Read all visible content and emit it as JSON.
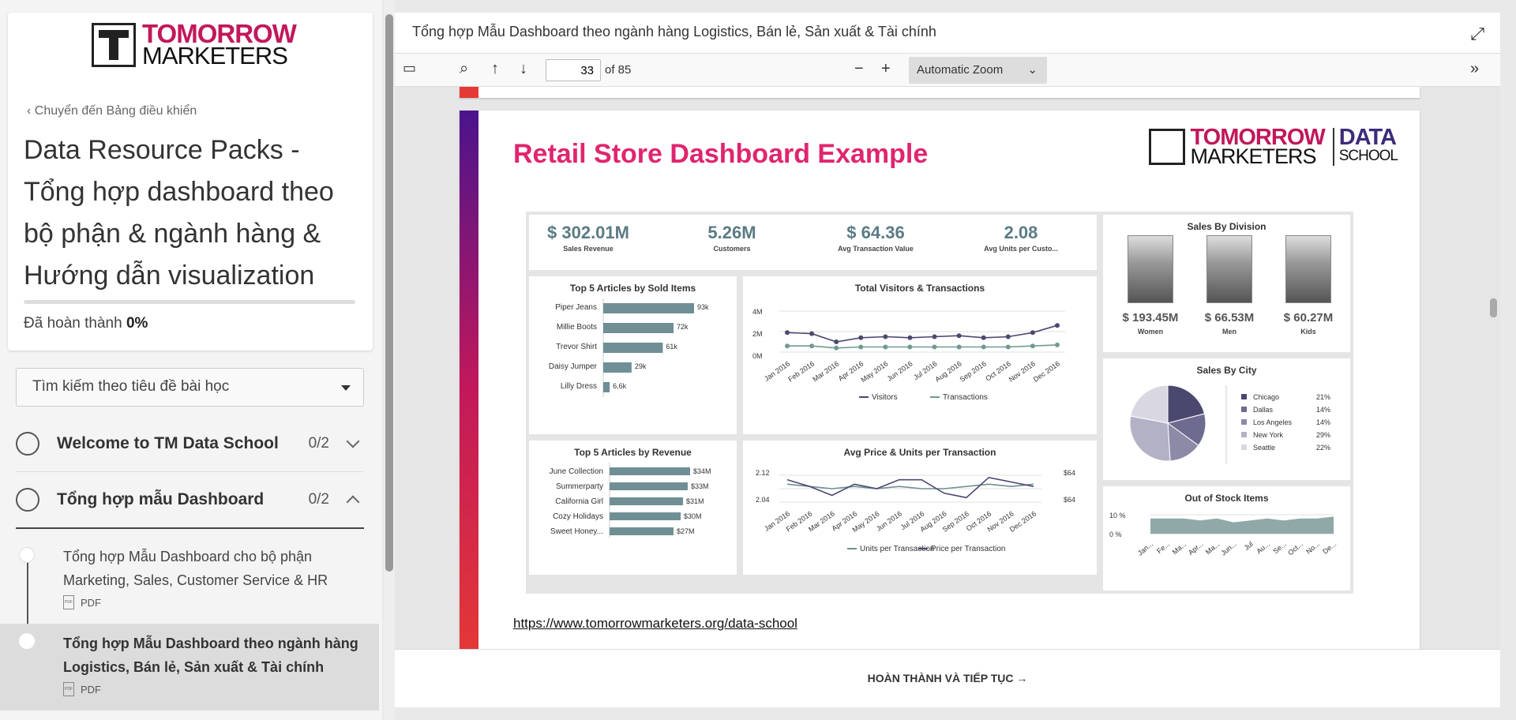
{
  "sidebar": {
    "logo": {
      "line1": "TOMORROW",
      "line2": "MARKETERS"
    },
    "back_link": "Chuyển đến Bảng điều khiển",
    "course_title": "Data Resource Packs - Tổng hợp dashboard theo bộ phận & ngành hàng & Hướng dẫn visualization",
    "progress_label": "Đã hoàn thành",
    "progress_value": "0%",
    "progress": 0,
    "search_placeholder": "Tìm kiếm theo tiêu đề bài học",
    "sections": [
      {
        "title": "Welcome to TM Data School",
        "count": "0/2",
        "expanded": false
      },
      {
        "title": "Tổng hợp mẫu Dashboard",
        "count": "0/2",
        "expanded": true
      }
    ],
    "lessons": [
      {
        "title": "Tổng hợp Mẫu Dashboard cho bộ phận Marketing, Sales, Customer Service & HR",
        "type": "PDF",
        "active": false
      },
      {
        "title": "Tổng hợp Mẫu Dashboard theo ngành hàng Logistics, Bán lẻ, Sản xuất & Tài chính",
        "type": "PDF",
        "active": true
      }
    ]
  },
  "viewer": {
    "title": "Tổng hợp Mẫu Dashboard theo ngành hàng Logistics, Bán lẻ, Sản xuất & Tài chính",
    "page": "33",
    "page_of": "of 85",
    "zoom": "Automatic Zoom",
    "footer_button": "HOÀN THÀNH VÀ TIẾP TỤC"
  },
  "slide": {
    "title": "Retail Store Dashboard Example",
    "logo": {
      "line1": "TOMORROW",
      "line2": "MARKETERS",
      "tag1": "DATA",
      "tag2": "SCHOOL"
    },
    "link": "https://www.tomorrowmarketers.org/data-school",
    "kpis": [
      {
        "value": "$ 302.01M",
        "label": "Sales Revenue"
      },
      {
        "value": "5.26M",
        "label": "Customers"
      },
      {
        "value": "$ 64.36",
        "label": "Avg Transaction Value"
      },
      {
        "value": "2.08",
        "label": "Avg Units per Custo..."
      }
    ],
    "division": {
      "title": "Sales By Division",
      "items": [
        {
          "value": "$ 193.45M",
          "label": "Women"
        },
        {
          "value": "$ 66.53M",
          "label": "Men"
        },
        {
          "value": "$ 60.27M",
          "label": "Kids"
        }
      ]
    }
  },
  "chart_data": [
    {
      "type": "bar",
      "title": "Top 5 Articles by Sold Items",
      "categories": [
        "Piper Jeans",
        "Millie Boots",
        "Trevor Shirt",
        "Daisy Jumper",
        "Lilly Dress"
      ],
      "values": [
        93,
        72,
        61,
        29,
        6.6
      ],
      "labels": [
        "93k",
        "72k",
        "61k",
        "29k",
        "6,6k"
      ]
    },
    {
      "type": "line",
      "title": "Total Visitors & Transactions",
      "x": [
        "Jan 2016",
        "Feb 2016",
        "Mar 2016",
        "Apr 2016",
        "May 2016",
        "Jun 2016",
        "Jul 2016",
        "Aug 2016",
        "Sep 2016",
        "Oct 2016",
        "Nov 2016",
        "Dec 2016"
      ],
      "yticks": [
        "4M",
        "2M",
        "0M"
      ],
      "ylim": [
        0,
        4
      ],
      "series": [
        {
          "name": "Visitors",
          "values": [
            1.9,
            1.8,
            1.0,
            1.4,
            1.5,
            1.4,
            1.5,
            1.6,
            1.4,
            1.5,
            1.9,
            2.6
          ]
        },
        {
          "name": "Transactions",
          "values": [
            0.6,
            0.6,
            0.4,
            0.5,
            0.5,
            0.5,
            0.5,
            0.5,
            0.5,
            0.5,
            0.6,
            0.7
          ]
        }
      ]
    },
    {
      "type": "bar",
      "title": "Top 5 Articles by Revenue",
      "categories": [
        "June Collection",
        "Summerparty",
        "California Girl",
        "Cozy Holidays",
        "Sweet Honey..."
      ],
      "values": [
        34,
        33,
        31,
        30,
        27
      ],
      "labels": [
        "$34M",
        "$33M",
        "$31M",
        "$30M",
        "$27M"
      ]
    },
    {
      "type": "line",
      "title": "Avg Price & Units per Transaction",
      "x": [
        "Jan 2016",
        "Feb 2016",
        "Mar 2016",
        "Apr 2016",
        "May 2016",
        "Jun 2016",
        "Jul 2016",
        "Aug 2016",
        "Sep 2016",
        "Oct 2016",
        "Nov 2016",
        "Dec 2016"
      ],
      "yticks_left": [
        "2.12",
        "2.04"
      ],
      "yticks_right": [
        "$64",
        "$64"
      ],
      "series": [
        {
          "name": "Units per Transaction",
          "values": [
            2.1,
            2.09,
            2.08,
            2.09,
            2.08,
            2.09,
            2.08,
            2.08,
            2.09,
            2.1,
            2.09,
            2.1
          ]
        },
        {
          "name": "Price per Transaction",
          "values": [
            2.12,
            2.09,
            2.05,
            2.1,
            2.08,
            2.12,
            2.12,
            2.06,
            2.04,
            2.13,
            2.11,
            2.09
          ]
        }
      ]
    },
    {
      "type": "pie",
      "title": "Sales By City",
      "categories": [
        "Chicago",
        "Dallas",
        "Los Angeles",
        "New York",
        "Seattle"
      ],
      "values": [
        21,
        14,
        14,
        29,
        22
      ],
      "labels": [
        "21%",
        "14%",
        "14%",
        "29%",
        "22%"
      ],
      "colors": [
        "#4b4870",
        "#6e6b90",
        "#8d8aa8",
        "#b3b1c6",
        "#d9d8e2"
      ]
    },
    {
      "type": "area",
      "title": "Out of Stock Items",
      "x": [
        "Jan...",
        "Fe...",
        "Ma...",
        "Apr...",
        "Ma...",
        "Jun...",
        "Jul",
        "Au...",
        "Se...",
        "Oct...",
        "No...",
        "De..."
      ],
      "yticks": [
        "10 %",
        "0 %"
      ],
      "values": [
        8,
        8,
        8,
        7,
        8,
        6,
        7,
        8,
        7,
        8,
        8,
        9
      ]
    }
  ]
}
